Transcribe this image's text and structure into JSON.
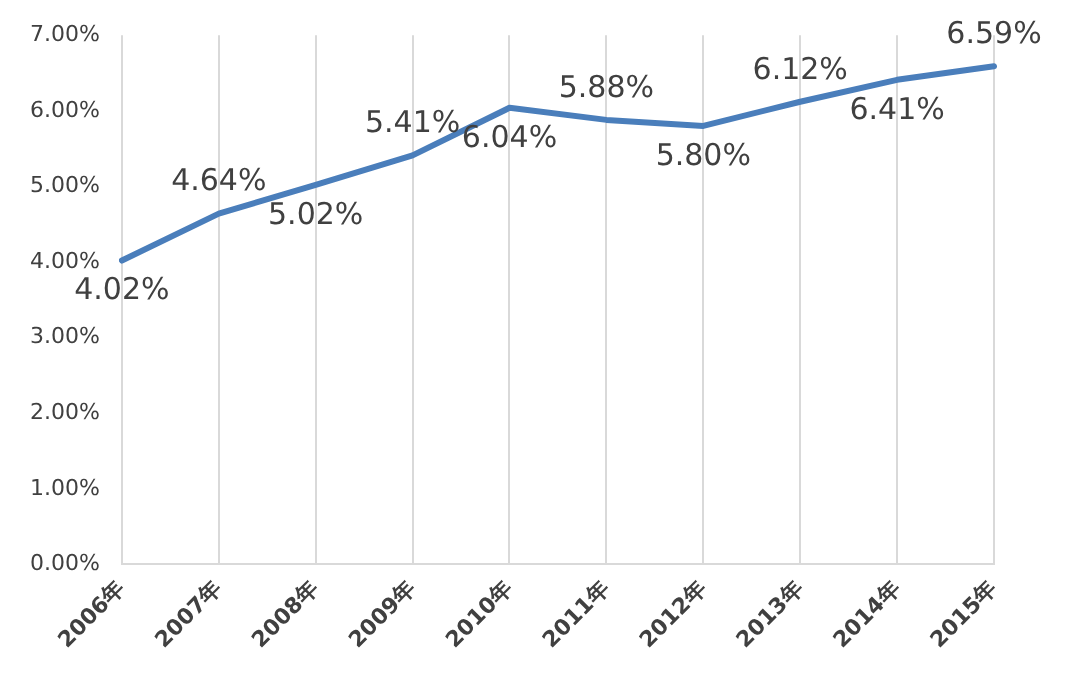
{
  "chart_data": {
    "type": "line",
    "categories": [
      "2006年",
      "2007年",
      "2008年",
      "2009年",
      "2010年",
      "2011年",
      "2012年",
      "2013年",
      "2014年",
      "2015年"
    ],
    "series": [
      {
        "color": "#4a7ebb",
        "values": [
          4.02,
          4.64,
          5.02,
          5.41,
          6.04,
          5.88,
          5.8,
          6.12,
          6.41,
          6.59
        ],
        "value_labels": [
          "4.02%",
          "4.64%",
          "5.02%",
          "5.41%",
          "6.04%",
          "5.88%",
          "5.80%",
          "6.12%",
          "6.41%",
          "6.59%"
        ]
      }
    ],
    "ylim": [
      0,
      7
    ],
    "yticks": [
      {
        "value": 0,
        "label": "0.00%"
      },
      {
        "value": 1,
        "label": "1.00%"
      },
      {
        "value": 2,
        "label": "2.00%"
      },
      {
        "value": 3,
        "label": "3.00%"
      },
      {
        "value": 4,
        "label": "4.00%"
      },
      {
        "value": 5,
        "label": "5.00%"
      },
      {
        "value": 6,
        "label": "6.00%"
      },
      {
        "value": 7,
        "label": "7.00%"
      }
    ],
    "grid": "x",
    "legend": false,
    "marker": "none",
    "line_style": "solid"
  }
}
